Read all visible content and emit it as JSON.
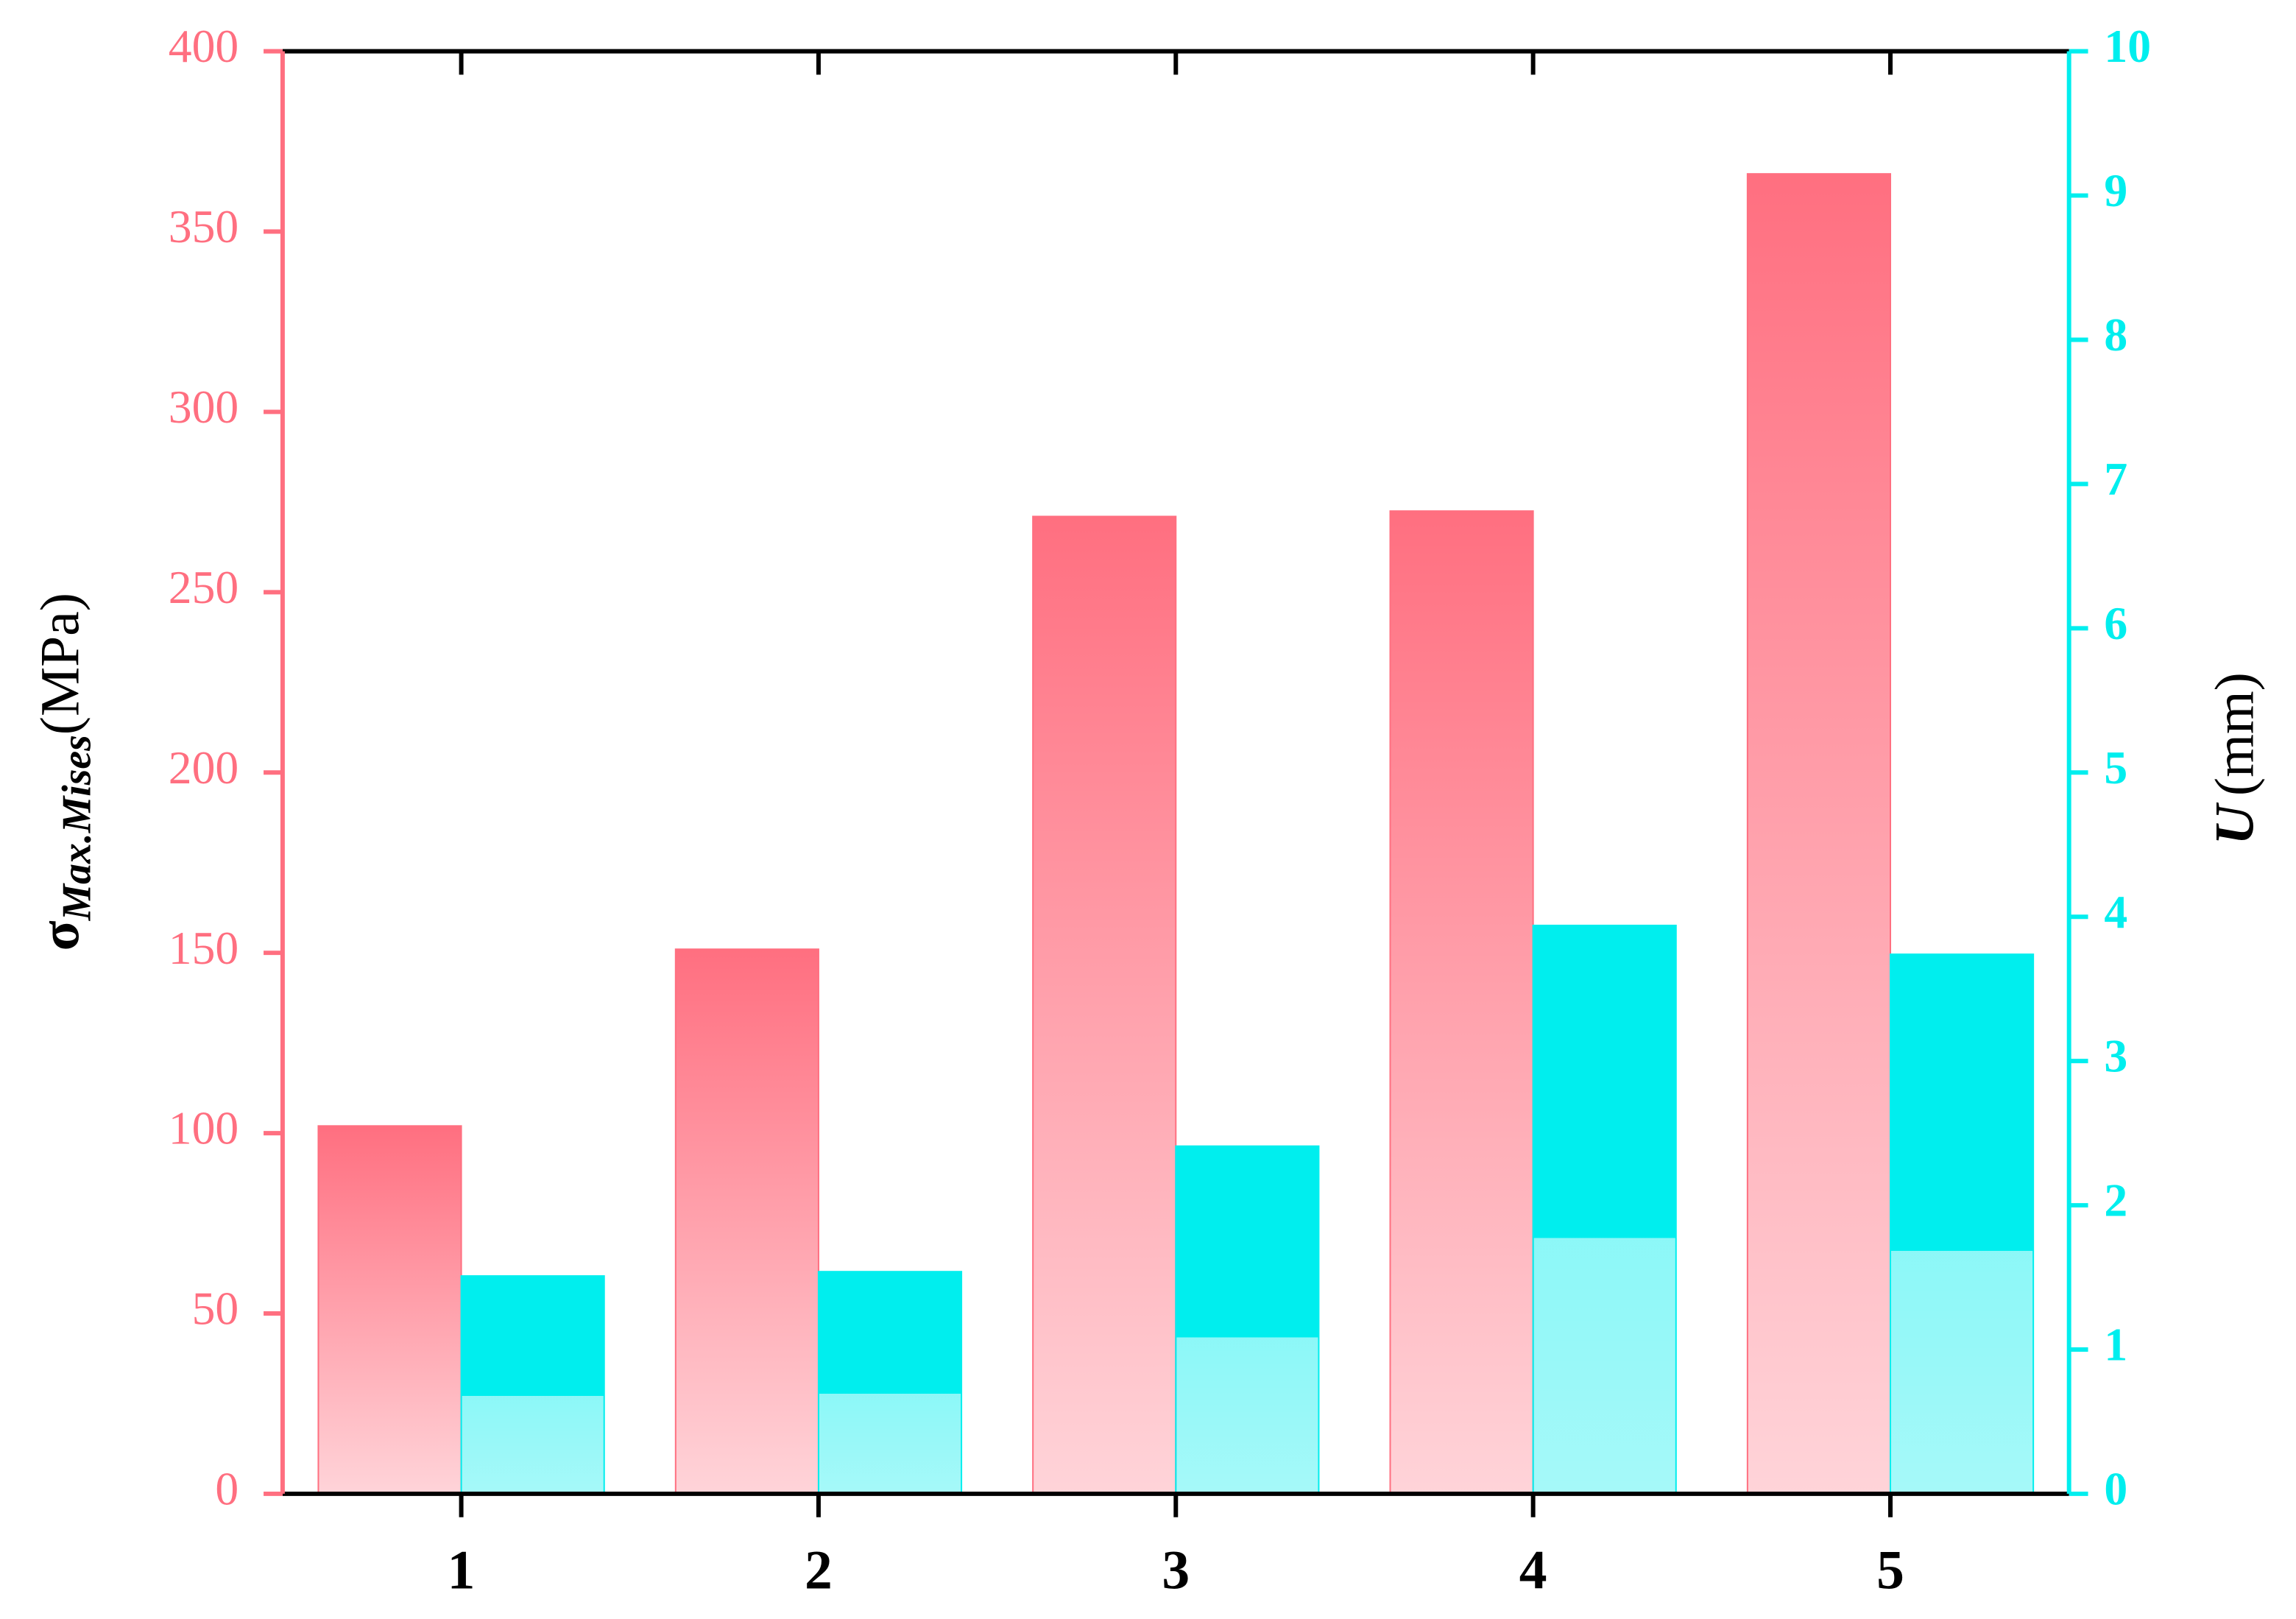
{
  "chart_data": {
    "type": "bar",
    "categories": [
      "1",
      "2",
      "3",
      "4",
      "5"
    ],
    "series": [
      {
        "name": "σMax.Mises",
        "color": "#ff6f80",
        "values": [
          102,
          151,
          271,
          272.5,
          366
        ]
      },
      {
        "name": "U",
        "color": "#00eeee",
        "values": [
          1.51,
          1.54,
          2.41,
          3.94,
          3.74
        ],
        "axis": "y2"
      }
    ],
    "ylabel": {
      "symbol": "σ",
      "subscript": "Max.Mises",
      "unit": "(MPa)"
    },
    "y2label": {
      "symbol": "U",
      "unit": "(mm)"
    },
    "ylim": [
      0,
      400
    ],
    "yticks": [
      0,
      50,
      100,
      150,
      200,
      250,
      300,
      350,
      400
    ],
    "y2lim": [
      0,
      10
    ],
    "y2ticks": [
      0,
      1,
      2,
      3,
      4,
      5,
      6,
      7,
      8,
      9,
      10
    ],
    "grid": false
  }
}
